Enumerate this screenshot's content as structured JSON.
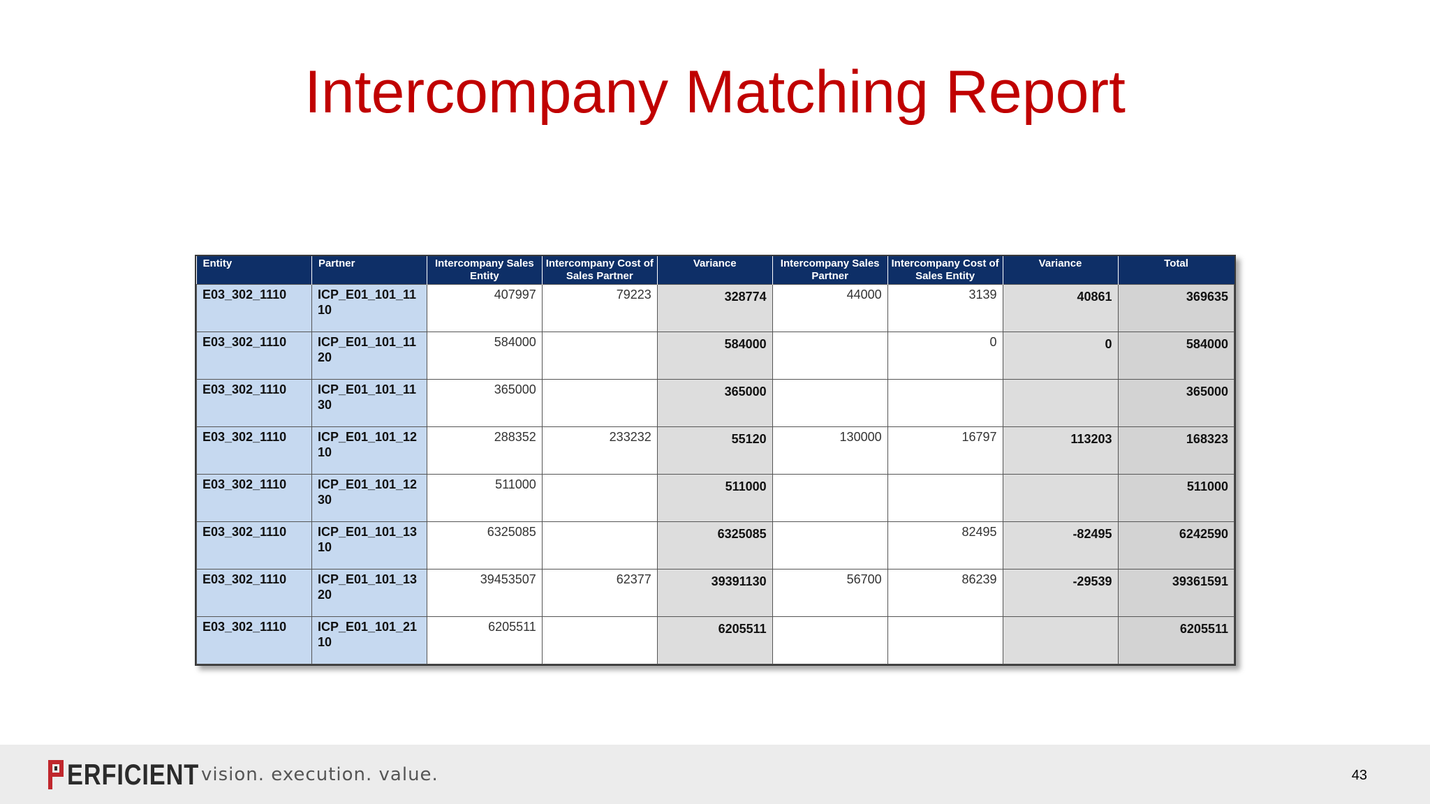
{
  "title": "Intercompany Matching Report",
  "table": {
    "headers": [
      "Entity",
      "Partner",
      "Intercompany Sales Entity",
      "Intercompany Cost of Sales Partner",
      "Variance",
      "Intercompany Sales Partner",
      "Intercompany Cost of Sales Entity",
      "Variance",
      "Total"
    ],
    "rows": [
      [
        "E03_302_1110",
        "ICP_E01_101_1110",
        "407997",
        "79223",
        "328774",
        "44000",
        "3139",
        "40861",
        "369635"
      ],
      [
        "E03_302_1110",
        "ICP_E01_101_1120",
        "584000",
        "",
        "584000",
        "",
        "0",
        "0",
        "584000"
      ],
      [
        "E03_302_1110",
        "ICP_E01_101_1130",
        "365000",
        "",
        "365000",
        "",
        "",
        "",
        "365000"
      ],
      [
        "E03_302_1110",
        "ICP_E01_101_1210",
        "288352",
        "233232",
        "55120",
        "130000",
        "16797",
        "113203",
        "168323"
      ],
      [
        "E03_302_1110",
        "ICP_E01_101_1230",
        "511000",
        "",
        "511000",
        "",
        "",
        "",
        "511000"
      ],
      [
        "E03_302_1110",
        "ICP_E01_101_1310",
        "6325085",
        "",
        "6325085",
        "",
        "82495",
        "-82495",
        "6242590"
      ],
      [
        "E03_302_1110",
        "ICP_E01_101_1320",
        "39453507",
        "62377",
        "39391130",
        "56700",
        "86239",
        "-29539",
        "39361591"
      ],
      [
        "E03_302_1110",
        "ICP_E01_101_2110",
        "6205511",
        "",
        "6205511",
        "",
        "",
        "",
        "6205511"
      ]
    ]
  },
  "footer": {
    "logo_text": "ERFICIENT",
    "logo_full": "PERFICIENT",
    "tagline": "vision.  execution.  value.",
    "page_number": "43"
  },
  "colors": {
    "title": "#c00000",
    "header_bg": "#0e2f67",
    "id_cell_bg": "#c6d9f0",
    "variance_bg": "#dddddd",
    "total_bg": "#d3d3d3",
    "footer_bg": "#ececec",
    "logo_red": "#c0272d"
  }
}
